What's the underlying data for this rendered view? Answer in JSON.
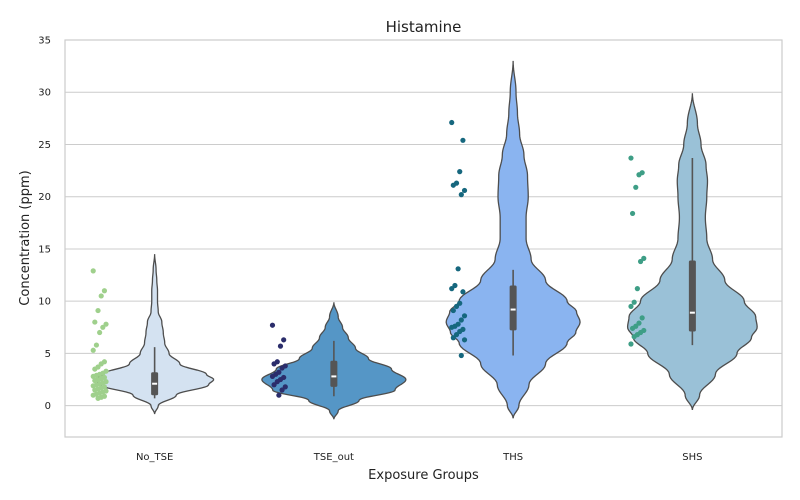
{
  "chart_data": {
    "type": "violin",
    "title": "Histamine",
    "xlabel": "Exposure Groups",
    "ylabel": "Concentration (ppm)",
    "ylim": [
      -3,
      35
    ],
    "yticks": [
      0,
      5,
      10,
      15,
      20,
      25,
      30,
      35
    ],
    "grid": "horizontal",
    "categories": [
      "No_TSE",
      "TSE_out",
      "THS",
      "SHS"
    ],
    "groups": [
      {
        "category": "No_TSE",
        "violin_color": "#d4e2f1",
        "point_color": "#9fd08c",
        "median": 2.1,
        "q1": 1.0,
        "q3": 3.2,
        "whisker_low": 0.7,
        "whisker_high": 5.6,
        "density": [
          [
            -0.8,
            0.0
          ],
          [
            0.0,
            0.05
          ],
          [
            1.0,
            0.3
          ],
          [
            2.0,
            0.75
          ],
          [
            2.5,
            0.82
          ],
          [
            3.0,
            0.72
          ],
          [
            4.0,
            0.35
          ],
          [
            5.0,
            0.2
          ],
          [
            6.0,
            0.14
          ],
          [
            7.0,
            0.12
          ],
          [
            8.0,
            0.1
          ],
          [
            9.0,
            0.05
          ],
          [
            10.0,
            0.04
          ],
          [
            11.0,
            0.04
          ],
          [
            12.0,
            0.03
          ],
          [
            13.0,
            0.02
          ],
          [
            14.5,
            0.0
          ]
        ],
        "points": [
          12.9,
          11.0,
          10.5,
          9.1,
          8.0,
          7.8,
          7.5,
          7.0,
          5.8,
          5.3,
          4.2,
          4.0,
          3.7,
          3.5,
          3.3,
          3.1,
          3.0,
          2.9,
          2.8,
          2.7,
          2.6,
          2.5,
          2.4,
          2.3,
          2.2,
          2.1,
          2.0,
          1.9,
          1.8,
          1.7,
          1.6,
          1.5,
          1.4,
          1.3,
          1.2,
          1.1,
          1.0,
          0.9,
          0.8,
          0.7
        ]
      },
      {
        "category": "TSE_out",
        "violin_color": "#5596c6",
        "point_color": "#2b2d6b",
        "median": 2.8,
        "q1": 1.8,
        "q3": 4.3,
        "whisker_low": 0.9,
        "whisker_high": 6.2,
        "density": [
          [
            -1.3,
            0.0
          ],
          [
            -0.5,
            0.06
          ],
          [
            0.5,
            0.35
          ],
          [
            1.5,
            0.85
          ],
          [
            2.5,
            1.0
          ],
          [
            3.5,
            0.8
          ],
          [
            4.5,
            0.48
          ],
          [
            5.5,
            0.3
          ],
          [
            6.5,
            0.2
          ],
          [
            7.5,
            0.12
          ],
          [
            8.5,
            0.06
          ],
          [
            9.9,
            0.0
          ]
        ],
        "points": [
          7.7,
          6.3,
          5.7,
          4.2,
          4.0,
          3.8,
          3.6,
          3.2,
          3.0,
          2.8,
          2.7,
          2.5,
          2.3,
          2.0,
          1.8,
          1.5,
          1.0
        ]
      },
      {
        "category": "THS",
        "violin_color": "#8ab4f0",
        "point_color": "#16677e",
        "median": 9.2,
        "q1": 7.2,
        "q3": 11.5,
        "whisker_low": 4.8,
        "whisker_high": 13.0,
        "density": [
          [
            -1.2,
            0.0
          ],
          [
            0.0,
            0.08
          ],
          [
            2.0,
            0.22
          ],
          [
            4.0,
            0.45
          ],
          [
            6.0,
            0.75
          ],
          [
            7.0,
            0.87
          ],
          [
            8.0,
            0.93
          ],
          [
            9.0,
            0.88
          ],
          [
            10.0,
            0.75
          ],
          [
            12.0,
            0.45
          ],
          [
            14.0,
            0.25
          ],
          [
            16.0,
            0.18
          ],
          [
            18.0,
            0.18
          ],
          [
            20.0,
            0.21
          ],
          [
            22.0,
            0.2
          ],
          [
            24.0,
            0.15
          ],
          [
            26.0,
            0.09
          ],
          [
            28.0,
            0.06
          ],
          [
            30.0,
            0.04
          ],
          [
            33.0,
            0.0
          ]
        ],
        "points": [
          27.1,
          25.4,
          22.4,
          21.3,
          21.1,
          20.6,
          20.2,
          13.1,
          11.5,
          11.2,
          10.9,
          9.8,
          9.5,
          9.1,
          8.6,
          8.2,
          7.8,
          7.6,
          7.5,
          7.3,
          7.1,
          6.8,
          6.5,
          6.3,
          4.8
        ]
      },
      {
        "category": "SHS",
        "violin_color": "#9ac1d7",
        "point_color": "#3e9e86",
        "median": 8.9,
        "q1": 7.1,
        "q3": 13.9,
        "whisker_low": 5.8,
        "whisker_high": 23.7,
        "density": [
          [
            -0.4,
            0.0
          ],
          [
            1.0,
            0.1
          ],
          [
            3.0,
            0.32
          ],
          [
            5.0,
            0.62
          ],
          [
            6.5,
            0.82
          ],
          [
            7.5,
            0.9
          ],
          [
            8.5,
            0.88
          ],
          [
            10.0,
            0.72
          ],
          [
            12.0,
            0.45
          ],
          [
            14.0,
            0.28
          ],
          [
            16.0,
            0.2
          ],
          [
            18.0,
            0.18
          ],
          [
            20.0,
            0.2
          ],
          [
            21.5,
            0.21
          ],
          [
            23.0,
            0.19
          ],
          [
            25.0,
            0.12
          ],
          [
            27.0,
            0.07
          ],
          [
            29.9,
            0.0
          ]
        ],
        "points": [
          23.7,
          22.3,
          22.1,
          20.9,
          18.4,
          14.1,
          13.8,
          11.2,
          9.9,
          9.5,
          8.4,
          7.9,
          7.6,
          7.4,
          7.2,
          7.0,
          6.8,
          6.6,
          5.9
        ]
      }
    ]
  }
}
